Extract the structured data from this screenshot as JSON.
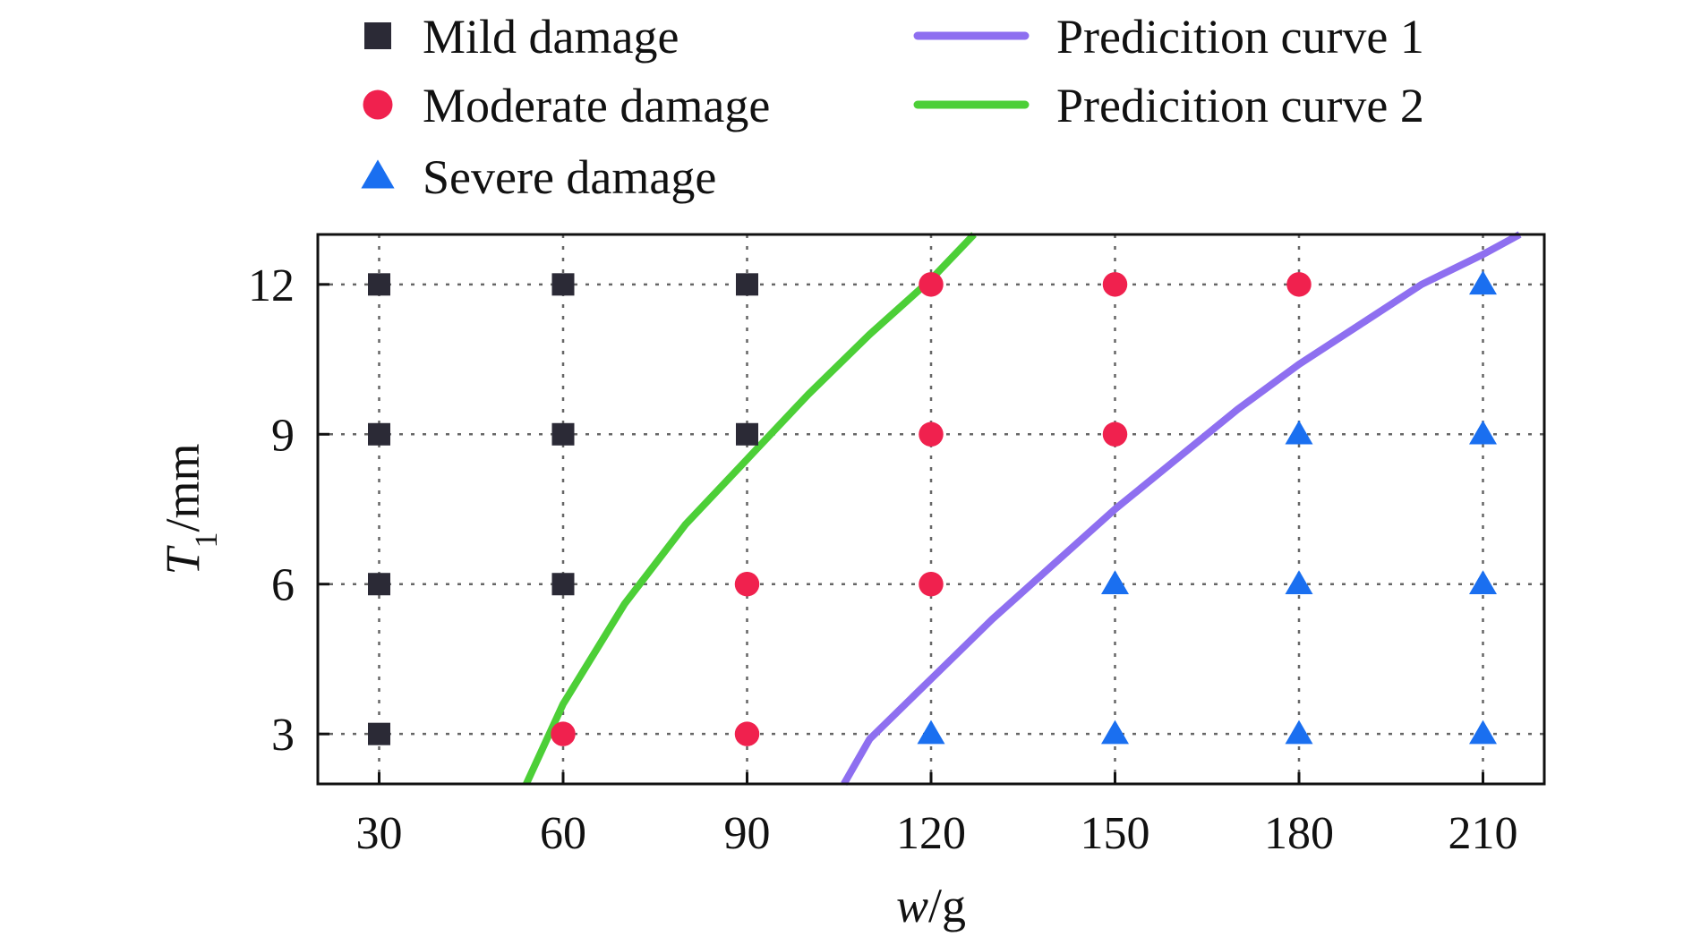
{
  "chart_data": {
    "type": "scatter",
    "xlabel_var": "w",
    "xlabel_unit": "/g",
    "ylabel_var": "T",
    "ylabel_sub": "1",
    "ylabel_unit": "/mm",
    "xlim": [
      20,
      220
    ],
    "ylim": [
      2,
      13
    ],
    "xticks": [
      30,
      60,
      90,
      120,
      150,
      180,
      210
    ],
    "yticks": [
      3,
      6,
      9,
      12
    ],
    "grid": "dotted",
    "legend_placement": "top",
    "series": [
      {
        "name": "Mild damage",
        "marker": "square",
        "color": "#2b2a36",
        "points": [
          [
            30,
            3
          ],
          [
            30,
            6
          ],
          [
            30,
            9
          ],
          [
            30,
            12
          ],
          [
            60,
            6
          ],
          [
            60,
            9
          ],
          [
            60,
            12
          ],
          [
            90,
            9
          ],
          [
            90,
            12
          ]
        ]
      },
      {
        "name": "Moderate damage",
        "marker": "circle",
        "color": "#f0214e",
        "points": [
          [
            60,
            3
          ],
          [
            90,
            3
          ],
          [
            90,
            6
          ],
          [
            120,
            6
          ],
          [
            120,
            9
          ],
          [
            120,
            12
          ],
          [
            150,
            9
          ],
          [
            150,
            12
          ],
          [
            180,
            12
          ]
        ]
      },
      {
        "name": "Severe damage",
        "marker": "triangle",
        "color": "#1a6ff0",
        "points": [
          [
            120,
            3
          ],
          [
            150,
            3
          ],
          [
            150,
            6
          ],
          [
            180,
            3
          ],
          [
            180,
            6
          ],
          [
            180,
            9
          ],
          [
            210,
            3
          ],
          [
            210,
            6
          ],
          [
            210,
            9
          ],
          [
            210,
            12
          ]
        ]
      }
    ],
    "curves": [
      {
        "name": "Predicition curve 1",
        "color": "#8e6ff0",
        "points": [
          [
            105.8,
            2
          ],
          [
            110,
            2.9
          ],
          [
            120,
            4.1
          ],
          [
            130,
            5.3
          ],
          [
            140,
            6.4
          ],
          [
            150,
            7.5
          ],
          [
            160,
            8.5
          ],
          [
            170,
            9.5
          ],
          [
            180,
            10.4
          ],
          [
            190,
            11.2
          ],
          [
            200,
            12
          ],
          [
            210,
            12.6
          ],
          [
            216,
            13
          ]
        ]
      },
      {
        "name": "Predicition curve 2",
        "color": "#4ccf37",
        "points": [
          [
            54,
            2
          ],
          [
            60,
            3.6
          ],
          [
            70,
            5.6
          ],
          [
            80,
            7.2
          ],
          [
            90,
            8.5
          ],
          [
            100,
            9.8
          ],
          [
            110,
            11
          ],
          [
            120,
            12.1
          ],
          [
            127,
            13
          ]
        ]
      }
    ]
  }
}
